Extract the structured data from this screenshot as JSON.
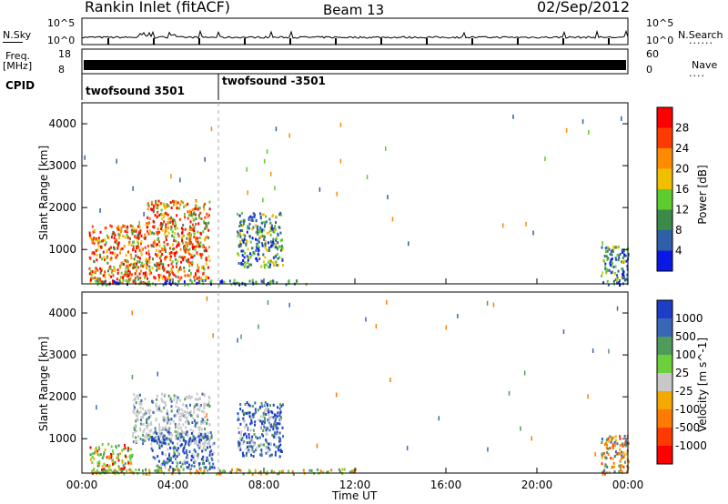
{
  "header": {
    "station": "Rankin Inlet (fitACF)",
    "beam": "Beam 13",
    "date": "02/Sep/2012"
  },
  "noise_panel": {
    "left_label": "N.Sky",
    "left_ticks": [
      "10^5",
      "10^0"
    ],
    "right_label": "N.Search",
    "right_ticks": [
      "10^5",
      "10^0"
    ]
  },
  "freq_panel": {
    "left_label_line1": "Freq.",
    "left_label_line2": "[MHz]",
    "left_ticks": [
      "18",
      "8"
    ],
    "right_label": "Nave",
    "right_ticks": [
      "60",
      "0"
    ]
  },
  "cpid_panel": {
    "label": "CPID",
    "modes": [
      "twofsound 3501",
      "twofsound -3501"
    ]
  },
  "time_axis": {
    "label": "Time UT",
    "ticks": [
      "00:00",
      "04:00",
      "08:00",
      "12:00",
      "16:00",
      "20:00",
      "00:00"
    ]
  },
  "chart_data": [
    {
      "type": "heatmap",
      "title": "Power",
      "ylabel": "Slant Range [km]",
      "xlabel": "Time UT",
      "xlim_hours": [
        0,
        24
      ],
      "ylim": [
        180,
        4500
      ],
      "yticks": [
        1000,
        2000,
        3000,
        4000
      ],
      "colorbar_label": "Power [dB]",
      "colorbar_ticks": [
        "28",
        "24",
        "20",
        "16",
        "12",
        "8",
        "4"
      ],
      "colorbar_colors": [
        "#ff0000",
        "#ff3a00",
        "#ff8c00",
        "#f0c000",
        "#5ecb2e",
        "#3c8a4a",
        "#2e5fa8",
        "#0a18e6"
      ],
      "regions": [
        {
          "t0": 0.3,
          "t1": 2.8,
          "r0": 200,
          "r1": 1600,
          "level": "high"
        },
        {
          "t0": 2.8,
          "t1": 5.6,
          "r0": 300,
          "r1": 2200,
          "level": "high"
        },
        {
          "t0": 6.8,
          "t1": 8.8,
          "r0": 600,
          "r1": 1900,
          "level": "mid"
        },
        {
          "t0": 0.5,
          "t1": 10.0,
          "r0": 180,
          "r1": 300,
          "level": "low"
        },
        {
          "t0": 22.8,
          "t1": 24.0,
          "r0": 180,
          "r1": 1100,
          "level": "mid"
        }
      ]
    },
    {
      "type": "heatmap",
      "title": "Velocity",
      "ylabel": "Slant Range [km]",
      "xlabel": "Time UT",
      "xlim_hours": [
        0,
        24
      ],
      "ylim": [
        180,
        4500
      ],
      "yticks": [
        1000,
        2000,
        3000,
        4000
      ],
      "colorbar_label": "Velocity [m s^-1]",
      "colorbar_ticks": [
        "1000",
        "500",
        "100",
        "25",
        "-25",
        "-100",
        "-500",
        "-1000"
      ],
      "colorbar_colors": [
        "#1c3fc8",
        "#3a66b8",
        "#4f9b5a",
        "#6bd03a",
        "#c8c8c8",
        "#f5a800",
        "#ff7a00",
        "#ff3a00",
        "#ff0000"
      ],
      "regions": [
        {
          "t0": 0.3,
          "t1": 2.2,
          "r0": 200,
          "r1": 900,
          "level": "green"
        },
        {
          "t0": 2.2,
          "t1": 5.6,
          "r0": 900,
          "r1": 2100,
          "level": "grey"
        },
        {
          "t0": 3.0,
          "t1": 5.8,
          "r0": 300,
          "r1": 1200,
          "level": "blue"
        },
        {
          "t0": 6.8,
          "t1": 8.8,
          "r0": 600,
          "r1": 1900,
          "level": "blue"
        },
        {
          "t0": 0.5,
          "t1": 12.0,
          "r0": 180,
          "r1": 300,
          "level": "low"
        },
        {
          "t0": 22.8,
          "t1": 24.0,
          "r0": 180,
          "r1": 1100,
          "level": "mixed"
        }
      ]
    }
  ]
}
